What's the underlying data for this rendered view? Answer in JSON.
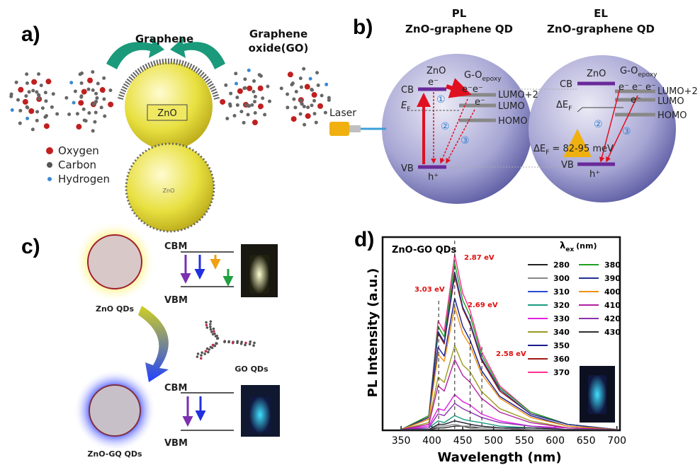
{
  "panel_a": {
    "label": "a)",
    "graphene": "Graphene",
    "graphene_oxide": [
      "Graphene",
      "oxide(GO)"
    ],
    "core": "ZnO",
    "core_small": "ZnO",
    "legend": [
      "Oxygen",
      "Carbon",
      "Hydrogen"
    ]
  },
  "panel_b": {
    "label": "b)",
    "pl": {
      "title": "PL",
      "subtitle": "ZnO-graphene QD"
    },
    "el": {
      "title": "EL",
      "subtitle": "ZnO-graphene QD"
    },
    "laser": "Laser",
    "left": {
      "zno": "ZnO",
      "e": "e⁻",
      "go": "G-O",
      "epoxy": "epoxy",
      "cb": "CB",
      "ef": "E",
      "ef_sub": "F",
      "ee": "e⁻e⁻",
      "e2": "e⁻",
      "lumo2": "LUMO+2",
      "lumo": "LUMO",
      "homo": "HOMO",
      "n1": "①",
      "n2": "②",
      "n3": "③",
      "vb": "VB",
      "h": "h⁺"
    },
    "right": {
      "zno": "ZnO",
      "go": "G-O",
      "epoxy": "epoxy",
      "cb": "CB",
      "eee": "e⁻ e⁻ e⁻",
      "e2": "e⁻",
      "lumo2": "LUMO+2",
      "lumo": "LUMO",
      "def": "ΔE",
      "def_sub": "F",
      "homo": "HOMO",
      "n2": "②",
      "n3": "③",
      "gap": "ΔE",
      "gap_sub": "F",
      "gap_val": " = 82-95 meV",
      "vb": "VB",
      "h": "h⁺"
    }
  },
  "panel_c": {
    "label": "c)",
    "cbm_top": "CBM",
    "vbm_top": "VBM",
    "zno_qds": "ZnO QDs",
    "go_qds": "GO QDs",
    "cbm_bottom": "CBM",
    "vbm_bottom": "VBM",
    "zno_gq_qds": "ZnO-GQ QDs"
  },
  "panel_d_label": "d)",
  "chart_data": {
    "type": "line",
    "title": "ZnO-GO QDs",
    "x_label": "Wavelength (nm)",
    "y_label": "PL Intensity (a.u.)",
    "legend_title": [
      "λ",
      "ex",
      "(nm)"
    ],
    "annotations": [
      "2.87 eV",
      "3.03 eV",
      "2.69 eV",
      "2.58 eV"
    ],
    "x": [
      350,
      395,
      410,
      420,
      437,
      450,
      462,
      480,
      510,
      560,
      620,
      700
    ],
    "xlim": [
      320,
      705
    ],
    "xticks": [
      350,
      400,
      450,
      500,
      550,
      600,
      650,
      700
    ],
    "ylim": [
      0,
      110
    ],
    "series": [
      {
        "name": "280",
        "color": "#222222",
        "values": [
          0,
          0,
          1,
          1,
          2,
          2,
          1,
          1,
          1,
          0,
          0,
          0
        ]
      },
      {
        "name": "300",
        "color": "#888888",
        "values": [
          0,
          0,
          2,
          2,
          3,
          2,
          2,
          1,
          1,
          0,
          0,
          0
        ]
      },
      {
        "name": "310",
        "color": "#2a4bd0",
        "values": [
          0,
          0,
          3,
          3,
          5,
          4,
          3,
          2,
          1,
          1,
          0,
          0
        ]
      },
      {
        "name": "320",
        "color": "#1a9a80",
        "values": [
          0,
          1,
          5,
          4,
          8,
          6,
          5,
          4,
          2,
          1,
          0,
          0
        ]
      },
      {
        "name": "330",
        "color": "#e020e0",
        "values": [
          0,
          2,
          12,
          11,
          20,
          16,
          14,
          9,
          5,
          2,
          1,
          0
        ]
      },
      {
        "name": "340",
        "color": "#9a9a20",
        "values": [
          0,
          4,
          30,
          27,
          48,
          37,
          33,
          22,
          12,
          5,
          1,
          0
        ]
      },
      {
        "name": "350",
        "color": "#1a1a90",
        "values": [
          0,
          6,
          47,
          42,
          75,
          59,
          51,
          34,
          19,
          8,
          2,
          0
        ]
      },
      {
        "name": "360",
        "color": "#a01818",
        "values": [
          0,
          7,
          55,
          49,
          88,
          69,
          60,
          40,
          22,
          9,
          3,
          0
        ]
      },
      {
        "name": "370",
        "color": "#ff3090",
        "values": [
          0,
          8,
          62,
          56,
          100,
          78,
          68,
          45,
          25,
          10,
          3,
          0
        ]
      },
      {
        "name": "380",
        "color": "#20a020",
        "values": [
          0,
          8,
          59,
          53,
          95,
          74,
          65,
          43,
          24,
          10,
          3,
          0
        ]
      },
      {
        "name": "390",
        "color": "#203090",
        "values": [
          0,
          7,
          56,
          50,
          90,
          70,
          61,
          41,
          23,
          9,
          3,
          0
        ]
      },
      {
        "name": "400",
        "color": "#f09010",
        "values": [
          0,
          6,
          43,
          39,
          70,
          55,
          48,
          32,
          18,
          7,
          2,
          0
        ]
      },
      {
        "name": "410",
        "color": "#b020a0",
        "values": [
          0,
          3,
          25,
          22,
          40,
          31,
          27,
          18,
          10,
          4,
          1,
          0
        ]
      },
      {
        "name": "420",
        "color": "#8a30b0",
        "values": [
          0,
          1,
          9,
          8,
          15,
          12,
          10,
          7,
          4,
          2,
          0,
          0
        ]
      },
      {
        "name": "430",
        "color": "#303030",
        "values": [
          0,
          0,
          3,
          3,
          5,
          4,
          3,
          2,
          1,
          1,
          0,
          0
        ]
      }
    ]
  }
}
